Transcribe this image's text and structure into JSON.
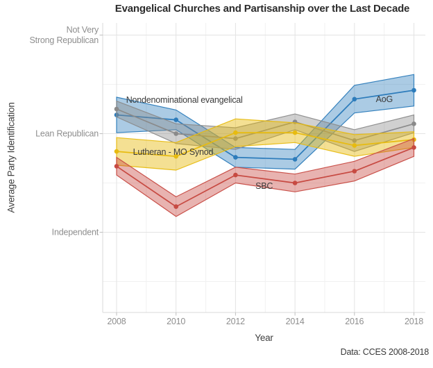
{
  "title": "Evangelical Churches and Partisanship over the Last Decade",
  "caption": "Data: CCES 2008-2018",
  "chart_data": {
    "type": "line",
    "x": [
      2008,
      2010,
      2012,
      2014,
      2016,
      2018
    ],
    "xlabel": "Year",
    "ylabel": "Average Party Identification",
    "x_tick_labels": [
      "2008",
      "2010",
      "2012",
      "2014",
      "2016",
      "2018"
    ],
    "x_minor_ticks": [
      2009,
      2011,
      2013,
      2015,
      2017
    ],
    "y_ticks": [
      {
        "value": 6,
        "label": "Not Very\nStrong Republican"
      },
      {
        "value": 5,
        "label": "Lean Republican"
      },
      {
        "value": 4,
        "label": "Independent"
      }
    ],
    "y_minor_ticks": [
      5.5,
      4.5,
      3.5
    ],
    "xlim": [
      2007.53,
      2018.39
    ],
    "ylim": [
      3.19,
      6.12
    ],
    "grid": true,
    "legend_position": "none (direct series labels on plot)",
    "series": [
      {
        "name": "AoG",
        "color": "#2d7cbb",
        "fill_alpha": 0.4,
        "values": [
          5.19,
          5.14,
          4.76,
          4.74,
          5.35,
          5.44
        ],
        "ci_halfwidth": [
          0.18,
          0.1,
          0.1,
          0.1,
          0.14,
          0.16
        ]
      },
      {
        "name": "Nondenominational evangelical",
        "color": "#8a8a8a",
        "fill_alpha": 0.4,
        "values": [
          5.25,
          5.0,
          4.95,
          5.12,
          4.93,
          5.1
        ],
        "ci_halfwidth": [
          0.08,
          0.1,
          0.11,
          0.08,
          0.11,
          0.09
        ]
      },
      {
        "name": "Lutheran - MO Synod",
        "color": "#e7bb10",
        "fill_alpha": 0.45,
        "values": [
          4.82,
          4.77,
          5.01,
          5.01,
          4.88,
          4.94
        ],
        "ci_halfwidth": [
          0.14,
          0.14,
          0.14,
          0.1,
          0.11,
          0.08
        ]
      },
      {
        "name": "SBC",
        "color": "#c74a42",
        "fill_alpha": 0.42,
        "values": [
          4.67,
          4.26,
          4.58,
          4.5,
          4.62,
          4.86
        ],
        "ci_halfwidth": [
          0.09,
          0.1,
          0.08,
          0.09,
          0.1,
          0.09
        ]
      }
    ],
    "annotations": [
      {
        "label": "Nondenominational evangelical",
        "year": 2008.32,
        "value": 5.34
      },
      {
        "label": "AoG",
        "year": 2016.72,
        "value": 5.35
      },
      {
        "label": "Lutheran - MO Synod",
        "year": 2008.55,
        "value": 4.81
      },
      {
        "label": "SBC",
        "year": 2012.67,
        "value": 4.47
      }
    ]
  }
}
